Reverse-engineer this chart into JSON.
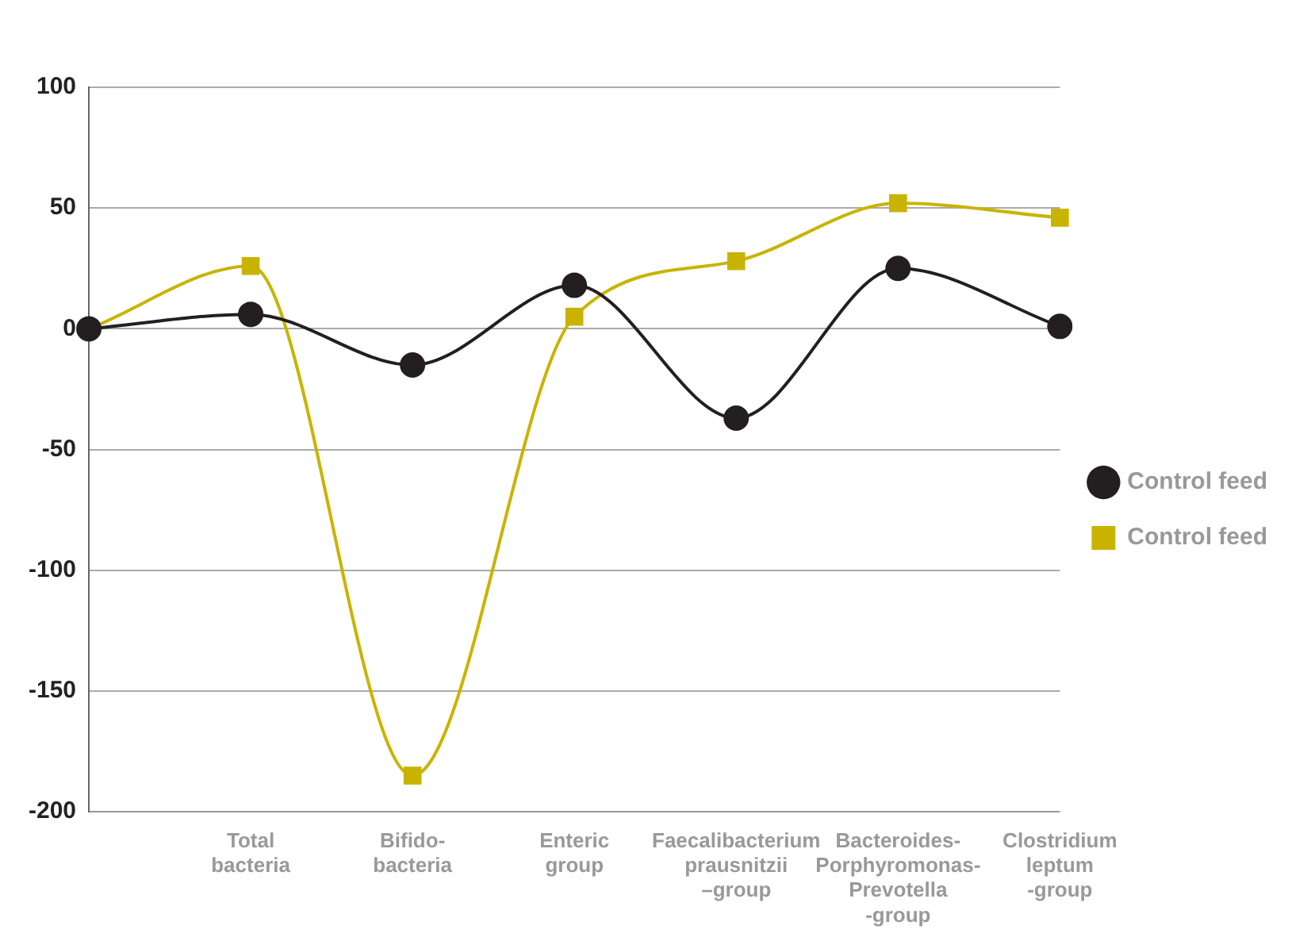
{
  "chart_data": {
    "type": "line",
    "categories": [
      null,
      "Total\nbacteria",
      "Bifido-\nbacteria",
      "Enteric\ngroup",
      "Faecalibacterium\nprausnitzii\n–group",
      "Bacteroides-\nPorphyromonas-\nPrevotella\n-group",
      "Clostridium\nleptum\n-group"
    ],
    "series": [
      {
        "name": "Control feed",
        "color": "#231f20",
        "marker": "circle",
        "values": [
          0,
          6,
          -15,
          18,
          -37,
          25,
          1
        ]
      },
      {
        "name": "Control feed",
        "color": "#c8b400",
        "marker": "square",
        "values": [
          0,
          26,
          -185,
          5,
          28,
          52,
          46
        ]
      }
    ],
    "ylim": [
      -200,
      100
    ],
    "yticks": [
      -200,
      -150,
      -100,
      -50,
      0,
      50,
      100
    ],
    "grid": "y",
    "legend": "right"
  }
}
